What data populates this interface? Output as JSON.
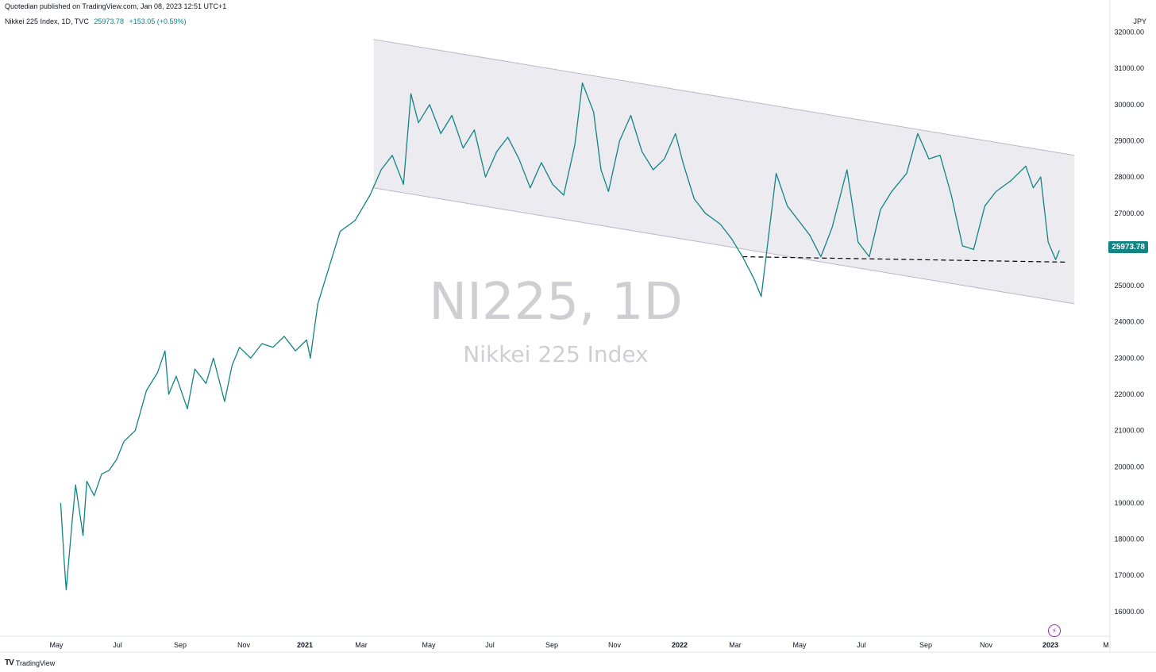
{
  "header": {
    "published": "Quotedian published on TradingView.com, Jan 08, 2023 12:51 UTC+1",
    "legend_symbol": "Nikkei 225 Index, 1D, TVC",
    "legend_value": "25973.78",
    "legend_change": "+153.05 (+0.59%)",
    "currency": "JPY"
  },
  "watermark": {
    "symbol": "NI225, 1D",
    "description": "Nikkei 225 Index"
  },
  "price_tag": "25973.78",
  "footer": {
    "logo_mark": "TV",
    "logo_text": "TradingView"
  },
  "colors": {
    "line": "#138484",
    "channel_fill": "#ecebf0",
    "channel_border": "#b9b8c8",
    "price_tag_bg": "#138484",
    "watermark": "#cfcfd3"
  },
  "chart_data": {
    "type": "line",
    "series": [
      {
        "values": [
          [
            2020.33,
            19000
          ],
          [
            2020.34,
            17300
          ],
          [
            2020.345,
            16600
          ],
          [
            2020.36,
            18400
          ],
          [
            2020.37,
            19500
          ],
          [
            2020.39,
            18100
          ],
          [
            2020.4,
            19600
          ],
          [
            2020.42,
            19200
          ],
          [
            2020.44,
            19800
          ],
          [
            2020.46,
            19900
          ],
          [
            2020.48,
            20200
          ],
          [
            2020.5,
            20700
          ],
          [
            2020.53,
            21000
          ],
          [
            2020.56,
            22100
          ],
          [
            2020.59,
            22600
          ],
          [
            2020.61,
            23200
          ],
          [
            2020.62,
            22000
          ],
          [
            2020.64,
            22500
          ],
          [
            2020.67,
            21600
          ],
          [
            2020.69,
            22700
          ],
          [
            2020.72,
            22300
          ],
          [
            2020.74,
            23000
          ],
          [
            2020.77,
            21800
          ],
          [
            2020.79,
            22800
          ],
          [
            2020.81,
            23300
          ],
          [
            2020.84,
            23000
          ],
          [
            2020.87,
            23400
          ],
          [
            2020.9,
            23300
          ],
          [
            2020.93,
            23600
          ],
          [
            2020.96,
            23200
          ],
          [
            2020.99,
            23500
          ],
          [
            2021.0,
            23000
          ],
          [
            2021.02,
            24500
          ],
          [
            2021.05,
            25500
          ],
          [
            2021.08,
            26500
          ],
          [
            2021.12,
            26800
          ],
          [
            2021.16,
            27500
          ],
          [
            2021.19,
            28200
          ],
          [
            2021.22,
            28600
          ],
          [
            2021.25,
            27800
          ],
          [
            2021.27,
            30300
          ],
          [
            2021.29,
            29500
          ],
          [
            2021.32,
            30000
          ],
          [
            2021.35,
            29200
          ],
          [
            2021.38,
            29700
          ],
          [
            2021.41,
            28800
          ],
          [
            2021.44,
            29300
          ],
          [
            2021.47,
            28000
          ],
          [
            2021.5,
            28700
          ],
          [
            2021.53,
            29100
          ],
          [
            2021.56,
            28500
          ],
          [
            2021.59,
            27700
          ],
          [
            2021.62,
            28400
          ],
          [
            2021.65,
            27800
          ],
          [
            2021.68,
            27500
          ],
          [
            2021.71,
            28900
          ],
          [
            2021.73,
            30600
          ],
          [
            2021.76,
            29800
          ],
          [
            2021.78,
            28200
          ],
          [
            2021.8,
            27600
          ],
          [
            2021.83,
            29000
          ],
          [
            2021.86,
            29700
          ],
          [
            2021.89,
            28700
          ],
          [
            2021.92,
            28200
          ],
          [
            2021.95,
            28500
          ],
          [
            2021.98,
            29200
          ],
          [
            2022.0,
            28400
          ],
          [
            2022.03,
            27400
          ],
          [
            2022.06,
            27000
          ],
          [
            2022.1,
            26700
          ],
          [
            2022.13,
            26300
          ],
          [
            2022.16,
            25800
          ],
          [
            2022.19,
            25200
          ],
          [
            2022.21,
            24700
          ],
          [
            2022.23,
            26400
          ],
          [
            2022.25,
            28100
          ],
          [
            2022.28,
            27200
          ],
          [
            2022.31,
            26800
          ],
          [
            2022.34,
            26400
          ],
          [
            2022.37,
            25800
          ],
          [
            2022.4,
            26600
          ],
          [
            2022.44,
            28200
          ],
          [
            2022.47,
            26200
          ],
          [
            2022.5,
            25800
          ],
          [
            2022.53,
            27100
          ],
          [
            2022.56,
            27600
          ],
          [
            2022.6,
            28100
          ],
          [
            2022.63,
            29200
          ],
          [
            2022.66,
            28500
          ],
          [
            2022.69,
            28600
          ],
          [
            2022.72,
            27500
          ],
          [
            2022.75,
            26100
          ],
          [
            2022.78,
            26000
          ],
          [
            2022.81,
            27200
          ],
          [
            2022.84,
            27600
          ],
          [
            2022.88,
            27900
          ],
          [
            2022.92,
            28300
          ],
          [
            2022.94,
            27700
          ],
          [
            2022.96,
            28000
          ],
          [
            2022.98,
            26200
          ],
          [
            2023.0,
            25720
          ],
          [
            2023.01,
            25973.78
          ]
        ]
      }
    ],
    "x_ticks": [
      "May",
      "Jul",
      "Sep",
      "Nov",
      "2021",
      "Mar",
      "May",
      "Jul",
      "Sep",
      "Nov",
      "2022",
      "Mar",
      "May",
      "Jul",
      "Sep",
      "Nov",
      "2023",
      "M"
    ],
    "y_ticks": [
      "16000.00",
      "17000.00",
      "18000.00",
      "19000.00",
      "20000.00",
      "21000.00",
      "22000.00",
      "23000.00",
      "24000.00",
      "25000.00",
      "26000.00",
      "27000.00",
      "28000.00",
      "29000.00",
      "30000.00",
      "31000.00",
      "32000.00"
    ],
    "ylim": [
      15500,
      32200
    ],
    "channel": {
      "upper": [
        [
          2021.17,
          31800
        ],
        [
          2023.05,
          28600
        ]
      ],
      "lower": [
        [
          2021.17,
          27700
        ],
        [
          2023.05,
          24500
        ]
      ]
    },
    "support_line": [
      [
        2022.16,
        25800
      ],
      [
        2023.03,
        25650
      ]
    ],
    "grid": false
  }
}
